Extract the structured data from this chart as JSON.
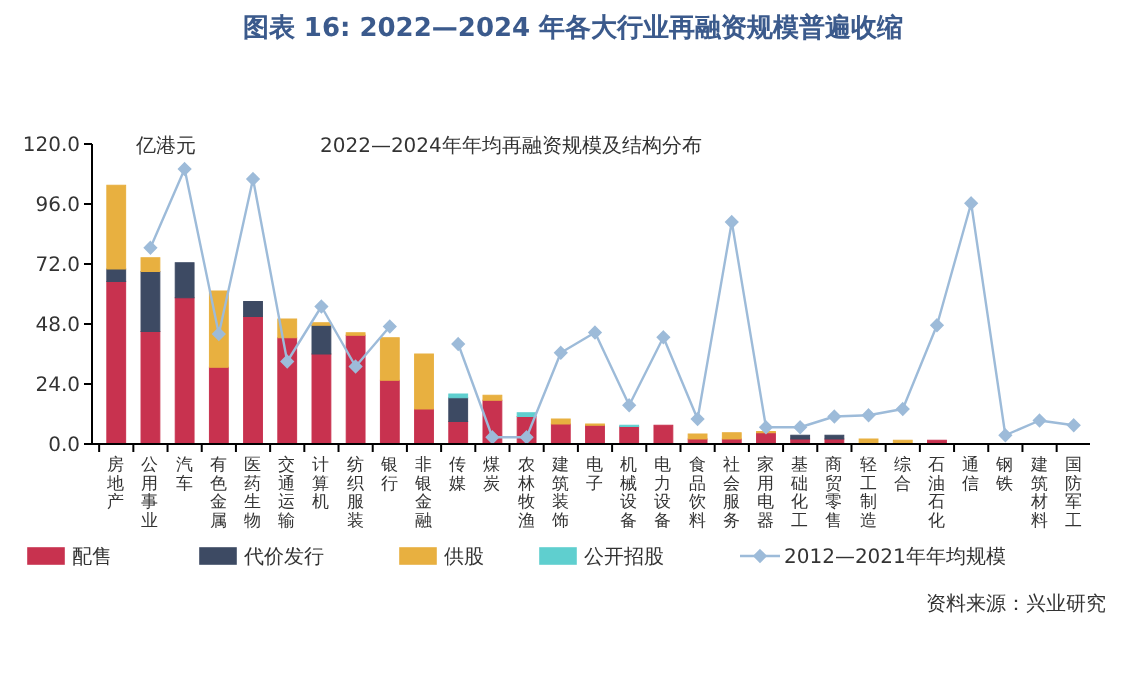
{
  "chart_data": {
    "type": "bar",
    "title": "图表 16: 2022—2024 年各大行业再融资规模普遍收缩",
    "subtitle": "2022—2024年年均再融资规模及结构分布",
    "ylabel": "亿港元",
    "annotations": [
      "资料来源：兴业研究"
    ],
    "categories": [
      "房地产",
      "公用事业",
      "汽车",
      "有色金属",
      "医药生物",
      "交通运输",
      "计算机",
      "纺织服装",
      "银行",
      "非银金融",
      "传媒",
      "煤炭",
      "农林牧渔",
      "建筑装饰",
      "电子",
      "机械设备",
      "电力设备",
      "食品饮料",
      "社会服务",
      "家用电器",
      "基础化工",
      "商贸零售",
      "轻工制造",
      "综合",
      "石油石化",
      "通信",
      "钢铁",
      "建筑材料",
      "国防军工"
    ],
    "stacked": true,
    "ylim": [
      0,
      120
    ],
    "yticks": [
      {
        "value": 0,
        "label": "0.0"
      },
      {
        "value": 24,
        "label": "24.0"
      },
      {
        "value": 48,
        "label": "48.0"
      },
      {
        "value": 72,
        "label": "72.0"
      },
      {
        "value": 96,
        "label": "96.0"
      },
      {
        "value": 120,
        "label": "120.0"
      }
    ],
    "grid": false,
    "legend": "bottom",
    "series": [
      {
        "name": "配售",
        "color": "#c8324f",
        "values": [
          65,
          45,
          58.5,
          30.7,
          51,
          42.5,
          36,
          43.5,
          25.5,
          14,
          9,
          17.5,
          11,
          8,
          7.5,
          7,
          7.5,
          2,
          2,
          4.5,
          2,
          2,
          null,
          null,
          1.5,
          0,
          0,
          0,
          0
        ]
      },
      {
        "name": "代价发行",
        "color": "#3d4a63",
        "values": [
          5,
          24,
          14,
          0,
          6,
          0,
          11.5,
          0,
          0,
          0,
          9.5,
          0,
          0,
          0,
          0,
          0,
          0,
          0,
          0,
          0,
          1.5,
          1.5,
          0,
          0,
          0,
          null,
          0,
          null,
          0
        ]
      },
      {
        "name": "供股",
        "color": "#e8b040",
        "values": [
          33.5,
          5.5,
          0,
          30.5,
          0,
          7.5,
          1,
          1,
          17,
          22,
          0,
          2,
          0,
          2,
          0.5,
          0,
          0,
          2,
          2.5,
          0.5,
          0,
          0,
          2,
          1.5,
          0,
          0,
          null,
          0,
          0
        ]
      },
      {
        "name": "公开招股",
        "color": "#5fcfcf",
        "values": [
          0,
          0,
          0,
          0,
          0,
          0,
          0,
          0,
          0,
          0,
          1.5,
          0,
          1.5,
          0,
          0,
          0.5,
          0,
          0,
          0,
          0,
          0,
          0,
          0,
          0,
          0,
          0,
          0,
          0,
          0
        ]
      },
      {
        "name": "2012—2021年年均规模",
        "type": "line",
        "color": "#9dbbd9",
        "marker": "diamond",
        "values": [
          null,
          78.5,
          110,
          44,
          106,
          33,
          55,
          31,
          47,
          null,
          40,
          2.7,
          2.7,
          36.5,
          44.6,
          15.5,
          42.7,
          10,
          88.8,
          6.7,
          6.7,
          11,
          11.5,
          14,
          47.5,
          96.3,
          3.5,
          9.4,
          7.5
        ]
      }
    ]
  }
}
